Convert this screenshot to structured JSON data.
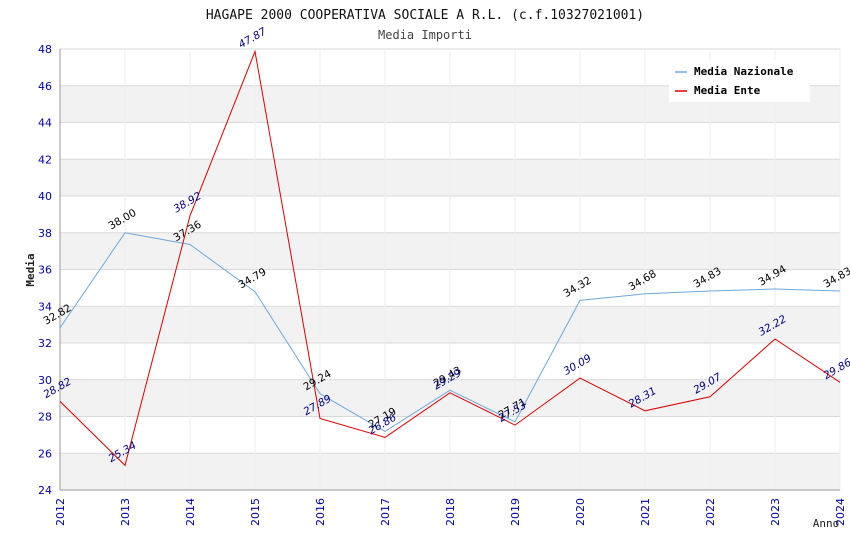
{
  "chart_data": {
    "type": "line",
    "title": "HAGAPE 2000 COOPERATIVA SOCIALE A R.L. (c.f.10327021001)",
    "subtitle": "Media Importi",
    "xlabel": "Anno",
    "ylabel": "Media",
    "ylim": [
      24,
      48
    ],
    "ytick_step": 2,
    "grid": true,
    "legend_position": "top-right",
    "x": [
      "2012",
      "2013",
      "2014",
      "2015",
      "2016",
      "2017",
      "2018",
      "2019",
      "2020",
      "2021",
      "2022",
      "2023",
      "2024"
    ],
    "series": [
      {
        "name": "Media Nazionale",
        "color": "#6fa8dc",
        "label_color": "#000000",
        "values": [
          32.82,
          38.0,
          37.36,
          34.79,
          29.24,
          27.19,
          29.43,
          27.71,
          34.32,
          34.68,
          34.83,
          34.94,
          34.83
        ],
        "labels": [
          "32.82",
          "38.00",
          "37.36",
          "34.79",
          "29.24",
          "27.19",
          "29.43",
          "27.71",
          "34.32",
          "34.68",
          "34.83",
          "34.94",
          "34.83"
        ]
      },
      {
        "name": "Media Ente",
        "color": "#dd0000",
        "label_color": "#000080",
        "values": [
          28.82,
          25.34,
          38.92,
          47.87,
          27.89,
          26.86,
          29.29,
          27.53,
          30.09,
          28.31,
          29.07,
          32.22,
          29.86
        ],
        "labels": [
          "28.82",
          "25.34",
          "38.92",
          "47.87",
          "27.89",
          "26.86",
          "29.29",
          "27.53",
          "30.09",
          "28.31",
          "29.07",
          "32.22",
          "29.86"
        ]
      }
    ]
  },
  "colors": {
    "band": "#f2f2f2",
    "grid": "#d9d9d9",
    "axis_tick_text": "#0000aa",
    "text": "#333333"
  }
}
